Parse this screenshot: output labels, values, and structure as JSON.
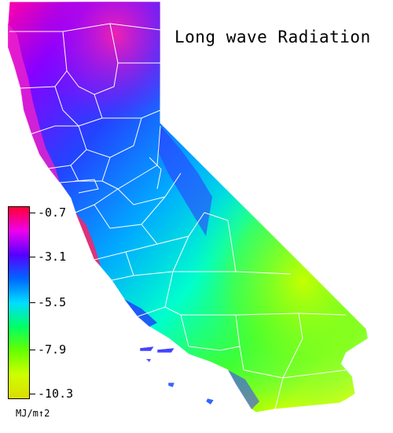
{
  "map": {
    "title": "Long wave Radiation",
    "region": "California",
    "legend": {
      "unit": "MJ/m↑2",
      "labels": [
        "-0.7",
        "-3.1",
        "-5.5",
        "-7.9",
        "-10.3"
      ],
      "scale_max": -0.7,
      "scale_min": -10.3,
      "colors": [
        "#ff0033",
        "#ee00ee",
        "#5500ff",
        "#0066ff",
        "#00ddff",
        "#00ff66",
        "#66ff00",
        "#ccff00",
        "#dddd00"
      ]
    },
    "boundary_color": "#ffffff"
  }
}
